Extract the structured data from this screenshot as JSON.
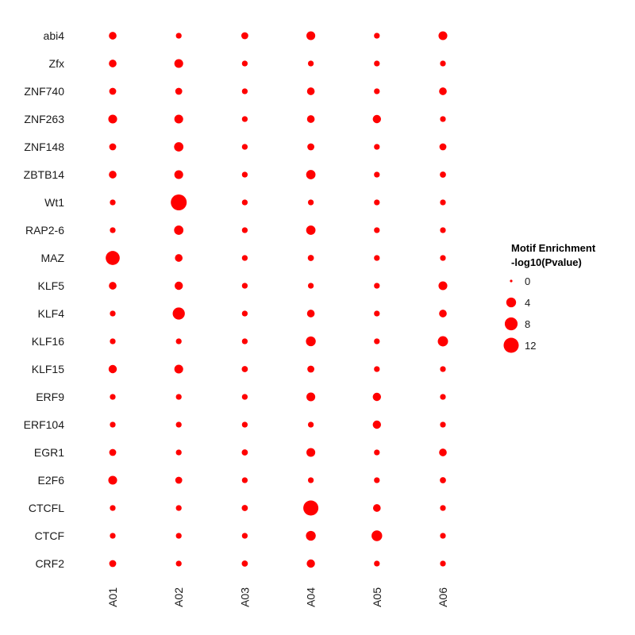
{
  "chart_data": {
    "type": "scatter",
    "subtype": "dot-matrix",
    "color": "#ff0000",
    "rows": [
      "abi4",
      "Zfx",
      "ZNF740",
      "ZNF263",
      "ZNF148",
      "ZBTB14",
      "Wt1",
      "RAP2-6",
      "MAZ",
      "KLF5",
      "KLF4",
      "KLF16",
      "KLF15",
      "ERF9",
      "ERF104",
      "EGR1",
      "E2F6",
      "CTCFL",
      "CTCF",
      "CRF2"
    ],
    "columns": [
      "A01",
      "A02",
      "A03",
      "A04",
      "A05",
      "A06"
    ],
    "values": [
      [
        2.0,
        0.8,
        1.5,
        3.0,
        0.8,
        3.0
      ],
      [
        2.0,
        3.0,
        0.8,
        0.8,
        0.8,
        0.8
      ],
      [
        1.5,
        1.5,
        0.8,
        2.0,
        0.8,
        2.0
      ],
      [
        3.0,
        3.0,
        0.8,
        2.0,
        2.5,
        0.8
      ],
      [
        1.5,
        3.5,
        0.8,
        1.5,
        0.8,
        1.5
      ],
      [
        2.0,
        3.0,
        0.8,
        3.5,
        0.8,
        1.0
      ],
      [
        0.8,
        13.5,
        0.8,
        0.8,
        0.8,
        0.8
      ],
      [
        0.8,
        3.5,
        0.8,
        3.5,
        0.8,
        0.8
      ],
      [
        10.0,
        2.0,
        0.8,
        1.0,
        0.8,
        0.8
      ],
      [
        2.0,
        2.5,
        0.8,
        0.8,
        0.8,
        3.0
      ],
      [
        0.8,
        7.0,
        0.8,
        2.0,
        0.8,
        2.0
      ],
      [
        0.8,
        0.8,
        0.8,
        4.0,
        0.8,
        4.5
      ],
      [
        2.5,
        3.0,
        1.0,
        1.5,
        0.8,
        0.8
      ],
      [
        0.8,
        0.8,
        0.8,
        3.0,
        2.5,
        0.8
      ],
      [
        0.8,
        0.8,
        0.8,
        0.8,
        2.5,
        0.8
      ],
      [
        1.5,
        0.8,
        1.0,
        3.0,
        0.8,
        2.0
      ],
      [
        3.0,
        1.5,
        0.8,
        0.8,
        0.8,
        1.0
      ],
      [
        0.8,
        0.8,
        1.0,
        12.0,
        2.0,
        0.8
      ],
      [
        0.8,
        0.8,
        0.8,
        4.0,
        5.0,
        0.8
      ],
      [
        1.5,
        0.8,
        1.0,
        2.5,
        0.8,
        0.8
      ]
    ],
    "legend": {
      "title_line1": "Motif Enrichment",
      "title_line2": "-log10(Pvalue)",
      "breaks": [
        0,
        4,
        8,
        12
      ],
      "labels": [
        "0",
        "4",
        "8",
        "12"
      ]
    },
    "size_max_value": 13.5
  }
}
